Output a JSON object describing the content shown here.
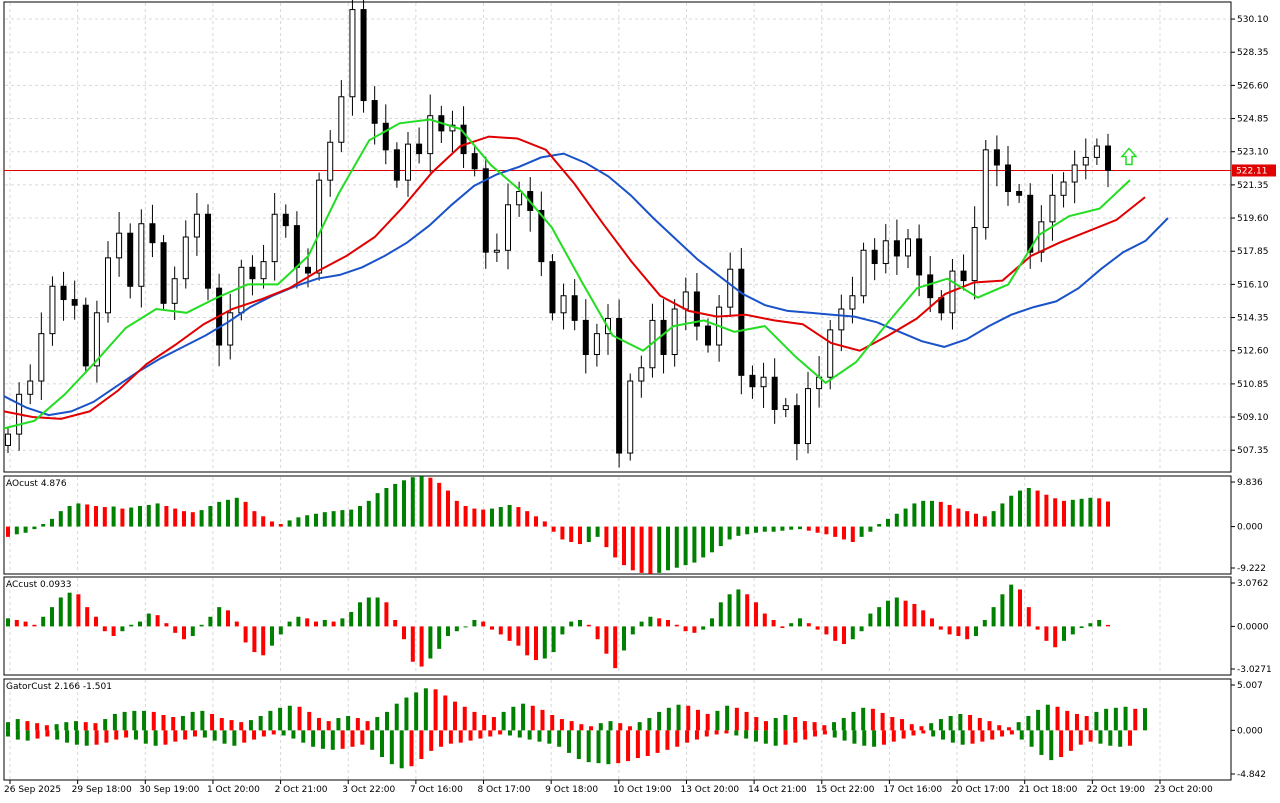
{
  "colors": {
    "background": "#ffffff",
    "grid": "#d8d8d8",
    "frame": "#000000",
    "bull_candle": "#ffffff",
    "bear_candle": "#000000",
    "jaw": "#1a52c8",
    "teeth": "#e00000",
    "lips": "#22dd22",
    "up_bar": "#008000",
    "down_bar": "#ff0000",
    "price_line": "#e00000",
    "price_label_bg": "#e00000",
    "price_label_text": "#ffffff",
    "fractal": "#9a9a9a",
    "signal_arrow": "#22dd22"
  },
  "main": {
    "price_axis": [
      "530.10",
      "528.35",
      "526.60",
      "524.85",
      "523.10",
      "521.35",
      "519.60",
      "517.85",
      "516.10",
      "514.35",
      "512.60",
      "510.85",
      "509.10",
      "507.35"
    ],
    "current_price": "522.11",
    "signal_arrow_icon": "up-arrow-icon"
  },
  "time_axis": [
    "26 Sep 2025",
    "29 Sep 18:00",
    "30 Sep 19:00",
    "1 Oct 20:00",
    "2 Oct 21:00",
    "3 Oct 22:00",
    "7 Oct 16:00",
    "8 Oct 17:00",
    "9 Oct 18:00",
    "10 Oct 19:00",
    "13 Oct 20:00",
    "14 Oct 21:00",
    "15 Oct 22:00",
    "17 Oct 16:00",
    "20 Oct 17:00",
    "21 Oct 18:00",
    "22 Oct 19:00",
    "23 Oct 20:00"
  ],
  "ao": {
    "title": "AOcust 4.876",
    "axis": [
      "9.836",
      "0.000",
      "-9.222"
    ]
  },
  "ac": {
    "title": "ACcust 0.0933",
    "axis": [
      "3.0762",
      "0.0000",
      "-3.0271"
    ]
  },
  "gator": {
    "title": "GatorCust 2.166 -1.501",
    "axis": [
      "5.007",
      "0.000",
      "-4.842"
    ]
  },
  "chart_data": [
    {
      "type": "candlestick",
      "title": "",
      "ylim": [
        506.2,
        531.0
      ],
      "price_level": 522.11,
      "approx": true,
      "closes": [
        508.2,
        510.3,
        511.0,
        513.5,
        516.0,
        515.3,
        515.0,
        511.8,
        514.6,
        517.5,
        518.8,
        516.0,
        519.3,
        518.3,
        515.1,
        516.4,
        518.6,
        519.8,
        515.9,
        512.9,
        514.6,
        517.0,
        516.4,
        517.3,
        519.8,
        519.2,
        517.0,
        516.7,
        521.6,
        523.6,
        526.0,
        530.6,
        525.8,
        524.6,
        523.2,
        521.6,
        523.5,
        523.0,
        525.0,
        524.2,
        524.5,
        523.0,
        522.2,
        517.8,
        517.9,
        520.3,
        521.0,
        520.0,
        517.3,
        514.6,
        515.5,
        514.2,
        512.4,
        513.5,
        514.3,
        507.2,
        511.0,
        511.7,
        514.2,
        512.4,
        514.8,
        515.7,
        513.9,
        512.9,
        514.9,
        516.9,
        511.3,
        510.7,
        511.2,
        509.5,
        509.7,
        507.7,
        510.6,
        511.2,
        513.7,
        514.8,
        515.5,
        517.9,
        517.2,
        518.4,
        517.6,
        518.5,
        516.6,
        515.4,
        514.6,
        516.8,
        516.3,
        519.1,
        523.2,
        522.4,
        521.0,
        520.8,
        517.8,
        519.4,
        520.8,
        521.5,
        522.4,
        522.8,
        523.4,
        522.11
      ],
      "aligator": {
        "jaw_approx": [
          510.2,
          509.6,
          509.2,
          509.4,
          509.9,
          510.7,
          511.5,
          512.2,
          512.8,
          513.4,
          514.1,
          514.9,
          515.5,
          516.0,
          516.4,
          516.6,
          517.0,
          517.6,
          518.3,
          519.2,
          520.3,
          521.3,
          521.9,
          522.3,
          522.8,
          523.0,
          522.5,
          521.8,
          520.8,
          519.6,
          518.5,
          517.4,
          516.5,
          515.6,
          515.0,
          514.7,
          514.6,
          514.5,
          514.4,
          514.1,
          513.6,
          513.1,
          512.8,
          513.2,
          513.9,
          514.5,
          514.9,
          515.2,
          515.9,
          516.9,
          517.8,
          518.4,
          519.6
        ],
        "teeth_approx": [
          509.4,
          509.1,
          509.0,
          509.4,
          510.5,
          511.9,
          512.9,
          514.0,
          514.8,
          515.3,
          515.9,
          516.8,
          517.6,
          518.6,
          520.2,
          522.0,
          523.4,
          523.9,
          523.8,
          523.2,
          521.4,
          519.3,
          517.3,
          515.5,
          514.7,
          514.4,
          514.5,
          514.2,
          514.0,
          513.0,
          512.6,
          513.4,
          514.3,
          515.6,
          516.2,
          516.3,
          517.6,
          518.3,
          518.9,
          519.5,
          520.7
        ],
        "lips_approx": [
          508.5,
          508.9,
          510.3,
          512.0,
          513.8,
          514.8,
          514.6,
          515.4,
          516.1,
          516.1,
          517.6,
          520.9,
          523.7,
          524.6,
          524.8,
          524.3,
          522.4,
          521.0,
          519.1,
          516.2,
          513.4,
          512.6,
          513.9,
          514.2,
          513.6,
          513.9,
          512.3,
          510.9,
          512.0,
          514.0,
          515.9,
          516.4,
          515.4,
          516.1,
          518.7,
          519.7,
          520.1,
          521.6
        ]
      }
    },
    {
      "type": "bar",
      "title": "AOcust 4.876",
      "ylim": [
        -9.222,
        9.836
      ],
      "values_approx": [
        -2,
        -1.5,
        -1.2,
        -0.5,
        0.5,
        1.5,
        3,
        4,
        4.5,
        4.3,
        4.0,
        3.8,
        3.9,
        3.5,
        3.7,
        4.0,
        4.2,
        4.5,
        4.0,
        3.5,
        3.0,
        2.8,
        3.2,
        4.0,
        4.8,
        5.2,
        5.6,
        4.8,
        3.0,
        2.0,
        1.0,
        0.5,
        1.2,
        1.8,
        2.2,
        2.5,
        2.8,
        3.0,
        3.2,
        3.3,
        4.0,
        5.0,
        6.5,
        7.5,
        8.3,
        9.0,
        9.6,
        9.8,
        9.5,
        8.5,
        7.0,
        5.0,
        4.0,
        3.5,
        3.3,
        3.5,
        3.8,
        4.2,
        3.8,
        3.0,
        2.0,
        1.0,
        -1,
        -2.5,
        -3.0,
        -3.4,
        -3.0,
        -2.0,
        -4.0,
        -6.0,
        -7.5,
        -8.5,
        -9.0,
        -9.2,
        -9.0,
        -8.5,
        -8.0,
        -7.5,
        -7.0,
        -6.0,
        -5.0,
        -3.8,
        -2.5,
        -1.8,
        -1.5,
        -1.2,
        -1.0,
        -1.0,
        -0.8,
        -0.6,
        -0.5,
        -0.8,
        -1.2,
        -1.5,
        -2.0,
        -2.5,
        -3.0,
        -2.0,
        -1.0,
        0.5,
        1.5,
        2.5,
        3.5,
        4.5,
        5.0,
        5.0,
        4.8,
        4.2,
        3.5,
        3.0,
        2.5,
        2.0,
        3.0,
        4.5,
        6.0,
        7.0,
        7.5,
        7.0,
        6.2,
        5.5,
        5.0,
        5.2,
        5.4,
        5.6,
        5.5,
        4.876
      ]
    },
    {
      "type": "bar",
      "title": "ACcust 0.0933",
      "ylim": [
        -3.0271,
        3.0762
      ],
      "values_approx": [
        0.5,
        0.4,
        0.3,
        0.1,
        0.6,
        1.2,
        1.8,
        2.1,
        2.0,
        1.2,
        0.6,
        -0.3,
        -0.6,
        -0.3,
        0.1,
        0.3,
        0.8,
        0.7,
        0.2,
        -0.4,
        -0.8,
        -0.6,
        0.1,
        0.6,
        1.2,
        1.0,
        0.3,
        -1.0,
        -1.6,
        -1.8,
        -1.2,
        -0.5,
        0.3,
        0.6,
        0.5,
        0.3,
        0.4,
        0.3,
        0.5,
        0.9,
        1.5,
        1.8,
        1.8,
        1.5,
        0.4,
        -0.8,
        -2.2,
        -2.5,
        -2.0,
        -1.4,
        -0.6,
        -0.3,
        0.0,
        0.4,
        0.3,
        -0.2,
        -0.5,
        -0.9,
        -1.2,
        -1.8,
        -2.1,
        -2.0,
        -1.6,
        -0.5,
        0.3,
        0.4,
        0.1,
        -0.8,
        -1.7,
        -2.6,
        -1.5,
        -0.5,
        0.3,
        0.6,
        0.5,
        0.4,
        0.1,
        -0.3,
        -0.4,
        -0.2,
        0.5,
        1.5,
        2.0,
        2.3,
        2.0,
        1.5,
        0.8,
        0.4,
        -0.1,
        0.2,
        0.5,
        0.2,
        -0.2,
        -0.5,
        -0.9,
        -1.1,
        -0.8,
        -0.3,
        0.8,
        1.2,
        1.6,
        1.8,
        1.6,
        1.4,
        1.0,
        0.5,
        -0.2,
        -0.5,
        -0.6,
        -0.8,
        -0.6,
        0.4,
        1.2,
        2.0,
        2.6,
        2.3,
        1.2,
        -0.2,
        -0.9,
        -1.3,
        -0.9,
        -0.5,
        -0.1,
        0.2,
        0.4,
        0.0933
      ]
    },
    {
      "type": "bar",
      "title": "GatorCust 2.166 -1.501",
      "ylim": [
        -4.842,
        5.007
      ],
      "upper_approx": [
        0.8,
        1.1,
        0.9,
        0.7,
        0.5,
        0.6,
        0.8,
        0.9,
        0.8,
        0.7,
        1.1,
        1.6,
        1.8,
        1.9,
        1.9,
        1.8,
        1.5,
        1.3,
        1.4,
        1.8,
        1.9,
        1.6,
        1.2,
        1.0,
        0.8,
        1.0,
        1.4,
        1.9,
        2.2,
        2.4,
        2.3,
        1.8,
        1.2,
        0.9,
        1.2,
        1.4,
        1.2,
        0.9,
        1.3,
        1.8,
        2.6,
        3.2,
        3.7,
        4.1,
        4.0,
        3.4,
        2.8,
        2.3,
        1.8,
        1.5,
        1.3,
        1.8,
        2.3,
        2.6,
        2.4,
        2.0,
        1.5,
        1.1,
        0.9,
        0.6,
        0.4,
        0.7,
        0.9,
        0.7,
        0.4,
        0.8,
        1.2,
        1.8,
        2.2,
        2.5,
        2.4,
        2.0,
        1.6,
        1.9,
        2.4,
        2.2,
        1.8,
        1.3,
        0.9,
        1.2,
        1.5,
        1.3,
        0.9,
        0.8,
        0.5,
        0.8,
        1.2,
        1.8,
        2.2,
        2.1,
        1.7,
        1.3,
        1.1,
        0.6,
        0.4,
        0.7,
        1.1,
        1.4,
        1.6,
        1.5,
        1.2,
        0.9,
        0.5,
        0.3,
        0.8,
        1.4,
        2.0,
        2.5,
        2.3,
        1.9,
        1.6,
        1.4,
        1.8,
        2.1,
        2.2,
        2.3,
        2.1,
        2.166
      ],
      "lower_approx": [
        -0.6,
        -0.9,
        -1.0,
        -0.8,
        -0.6,
        -0.9,
        -1.2,
        -1.4,
        -1.5,
        -1.4,
        -1.2,
        -0.9,
        -0.7,
        -0.9,
        -1.3,
        -1.5,
        -1.4,
        -1.1,
        -0.9,
        -0.6,
        -0.7,
        -1.0,
        -1.3,
        -1.5,
        -1.2,
        -0.9,
        -0.6,
        -0.4,
        -0.5,
        -0.8,
        -1.2,
        -1.6,
        -1.8,
        -1.9,
        -1.8,
        -1.6,
        -1.4,
        -1.9,
        -2.6,
        -3.3,
        -3.7,
        -3.5,
        -2.8,
        -2.0,
        -1.6,
        -1.3,
        -1.2,
        -1.0,
        -0.8,
        -0.6,
        -0.4,
        -0.5,
        -0.7,
        -0.9,
        -1.1,
        -1.3,
        -1.6,
        -2.2,
        -2.8,
        -3.1,
        -3.2,
        -3.3,
        -3.2,
        -3.0,
        -2.7,
        -2.5,
        -2.2,
        -1.9,
        -1.6,
        -1.2,
        -0.9,
        -0.6,
        -0.4,
        -0.3,
        -0.5,
        -0.8,
        -1.1,
        -1.3,
        -1.5,
        -1.4,
        -1.2,
        -0.9,
        -0.6,
        -0.4,
        -0.7,
        -1.0,
        -1.3,
        -1.5,
        -1.6,
        -1.4,
        -1.1,
        -0.8,
        -0.5,
        -0.3,
        -0.6,
        -0.9,
        -1.2,
        -1.4,
        -1.3,
        -1.1,
        -0.9,
        -0.6,
        -0.4,
        -0.9,
        -1.6,
        -2.4,
        -2.9,
        -2.6,
        -2.0,
        -1.4,
        -1.1,
        -1.3,
        -1.5,
        -1.6,
        -1.501
      ]
    }
  ]
}
